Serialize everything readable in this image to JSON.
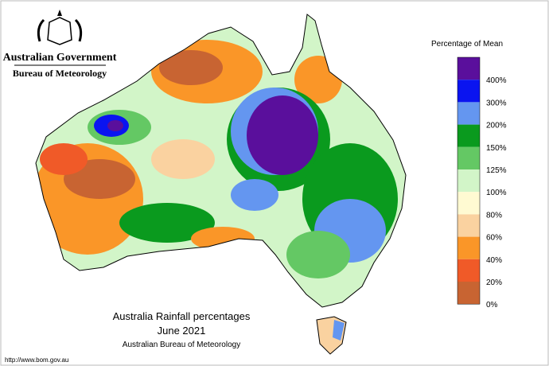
{
  "header": {
    "agency": "Australian Government",
    "bureau": "Bureau of Meteorology"
  },
  "legend": {
    "title": "Percentage of Mean",
    "items": [
      {
        "label": "400%",
        "color": "#5a0f9c"
      },
      {
        "label": "300%",
        "color": "#0a14f0"
      },
      {
        "label": "200%",
        "color": "#6496f0"
      },
      {
        "label": "150%",
        "color": "#0a9a1e"
      },
      {
        "label": "125%",
        "color": "#64c864"
      },
      {
        "label": "100%",
        "color": "#d2f5c8"
      },
      {
        "label": "80%",
        "color": "#fffad2"
      },
      {
        "label": "60%",
        "color": "#fad2a0"
      },
      {
        "label": "40%",
        "color": "#fa9628"
      },
      {
        "label": "20%",
        "color": "#f05a28"
      },
      {
        "label": "0%",
        "color": "#c86432"
      }
    ]
  },
  "title": {
    "line1": "Australia Rainfall percentages",
    "line2": "June 2021",
    "line3": "Australian Bureau of Meteorology"
  },
  "footer": {
    "url": "http://www.bom.gov.au"
  }
}
